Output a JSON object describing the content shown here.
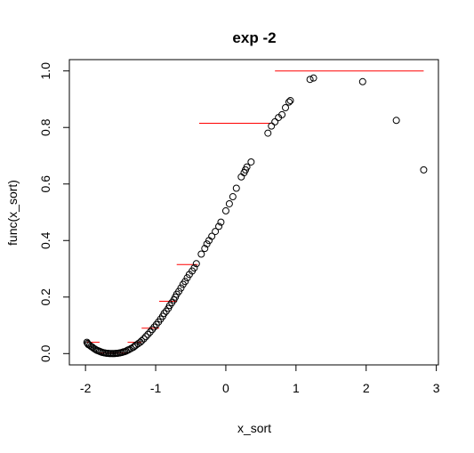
{
  "chart_data": {
    "type": "scatter",
    "title": "exp -2",
    "xlabel": "x_sort",
    "ylabel": "func(x_sort)",
    "xlim": [
      -2.23,
      3.03
    ],
    "ylim": [
      -0.04,
      1.04
    ],
    "xticks": [
      -2,
      -1,
      0,
      1,
      2,
      3
    ],
    "yticks": [
      0.0,
      0.2,
      0.4,
      0.6,
      0.8,
      1.0
    ],
    "xtick_labels": [
      "-2",
      "-1",
      "0",
      "1",
      "2",
      "3"
    ],
    "ytick_labels": [
      "0.0",
      "0.2",
      "0.4",
      "0.6",
      "0.8",
      "1.0"
    ],
    "grid": false,
    "point_color": "#000000",
    "step_color": "#ff0000",
    "series": [
      {
        "values": [
          [
            -1.98,
            0.04
          ],
          [
            -1.97,
            0.036
          ],
          [
            -1.96,
            0.032
          ],
          [
            -1.94,
            0.029
          ],
          [
            -1.92,
            0.025
          ],
          [
            -1.9,
            0.022
          ],
          [
            -1.88,
            0.018
          ],
          [
            -1.86,
            0.015
          ],
          [
            -1.84,
            0.012
          ],
          [
            -1.82,
            0.01
          ],
          [
            -1.8,
            0.008
          ],
          [
            -1.78,
            0.006
          ],
          [
            -1.76,
            0.004
          ],
          [
            -1.74,
            0.003
          ],
          [
            -1.72,
            0.002
          ],
          [
            -1.7,
            0.001
          ],
          [
            -1.68,
            0.001
          ],
          [
            -1.66,
            0.0
          ],
          [
            -1.64,
            0.0
          ],
          [
            -1.62,
            0.0
          ],
          [
            -1.6,
            0.0
          ],
          [
            -1.58,
            0.0
          ],
          [
            -1.56,
            0.001
          ],
          [
            -1.54,
            0.001
          ],
          [
            -1.52,
            0.002
          ],
          [
            -1.5,
            0.003
          ],
          [
            -1.48,
            0.004
          ],
          [
            -1.46,
            0.006
          ],
          [
            -1.44,
            0.007
          ],
          [
            -1.42,
            0.009
          ],
          [
            -1.4,
            0.012
          ],
          [
            -1.38,
            0.014
          ],
          [
            -1.35,
            0.018
          ],
          [
            -1.32,
            0.022
          ],
          [
            -1.3,
            0.026
          ],
          [
            -1.28,
            0.03
          ],
          [
            -1.25,
            0.035
          ],
          [
            -1.22,
            0.04
          ],
          [
            -1.2,
            0.045
          ],
          [
            -1.17,
            0.052
          ],
          [
            -1.14,
            0.06
          ],
          [
            -1.11,
            0.068
          ],
          [
            -1.08,
            0.076
          ],
          [
            -1.05,
            0.085
          ],
          [
            -1.02,
            0.094
          ],
          [
            -0.99,
            0.103
          ],
          [
            -0.96,
            0.112
          ],
          [
            -0.93,
            0.122
          ],
          [
            -0.9,
            0.132
          ],
          [
            -0.88,
            0.142
          ],
          [
            -0.85,
            0.15
          ],
          [
            -0.82,
            0.16
          ],
          [
            -0.8,
            0.17
          ],
          [
            -0.77,
            0.18
          ],
          [
            -0.74,
            0.19
          ],
          [
            -0.72,
            0.2
          ],
          [
            -0.7,
            0.21
          ],
          [
            -0.67,
            0.22
          ],
          [
            -0.64,
            0.232
          ],
          [
            -0.61,
            0.245
          ],
          [
            -0.58,
            0.255
          ],
          [
            -0.55,
            0.268
          ],
          [
            -0.52,
            0.28
          ],
          [
            -0.48,
            0.292
          ],
          [
            -0.45,
            0.303
          ],
          [
            -0.42,
            0.318
          ],
          [
            -0.35,
            0.352
          ],
          [
            -0.3,
            0.372
          ],
          [
            -0.27,
            0.388
          ],
          [
            -0.24,
            0.4
          ],
          [
            -0.2,
            0.415
          ],
          [
            -0.15,
            0.432
          ],
          [
            -0.1,
            0.45
          ],
          [
            -0.07,
            0.465
          ],
          [
            0.0,
            0.505
          ],
          [
            0.05,
            0.53
          ],
          [
            0.1,
            0.555
          ],
          [
            0.15,
            0.585
          ],
          [
            0.22,
            0.625
          ],
          [
            0.26,
            0.64
          ],
          [
            0.28,
            0.65
          ],
          [
            0.3,
            0.66
          ],
          [
            0.36,
            0.678
          ],
          [
            0.6,
            0.78
          ],
          [
            0.65,
            0.805
          ],
          [
            0.7,
            0.82
          ],
          [
            0.75,
            0.835
          ],
          [
            0.8,
            0.845
          ],
          [
            0.85,
            0.87
          ],
          [
            0.9,
            0.89
          ],
          [
            0.92,
            0.895
          ],
          [
            1.2,
            0.97
          ],
          [
            1.25,
            0.975
          ],
          [
            1.95,
            0.962
          ],
          [
            2.43,
            0.825
          ],
          [
            2.82,
            0.65
          ]
        ]
      }
    ],
    "steps": [
      {
        "x": [
          -1.98,
          -1.8
        ],
        "y": 0.04
      },
      {
        "x": [
          -1.8,
          -1.4
        ],
        "y": 0.002
      },
      {
        "x": [
          -1.4,
          -1.2
        ],
        "y": 0.04
      },
      {
        "x": [
          -1.2,
          -0.95
        ],
        "y": 0.09
      },
      {
        "x": [
          -0.95,
          -0.7
        ],
        "y": 0.185
      },
      {
        "x": [
          -0.7,
          -0.4
        ],
        "y": 0.315
      },
      {
        "x": [
          -0.38,
          0.65
        ],
        "y": 0.815
      },
      {
        "x": [
          0.7,
          2.82
        ],
        "y": 1.0
      }
    ]
  }
}
